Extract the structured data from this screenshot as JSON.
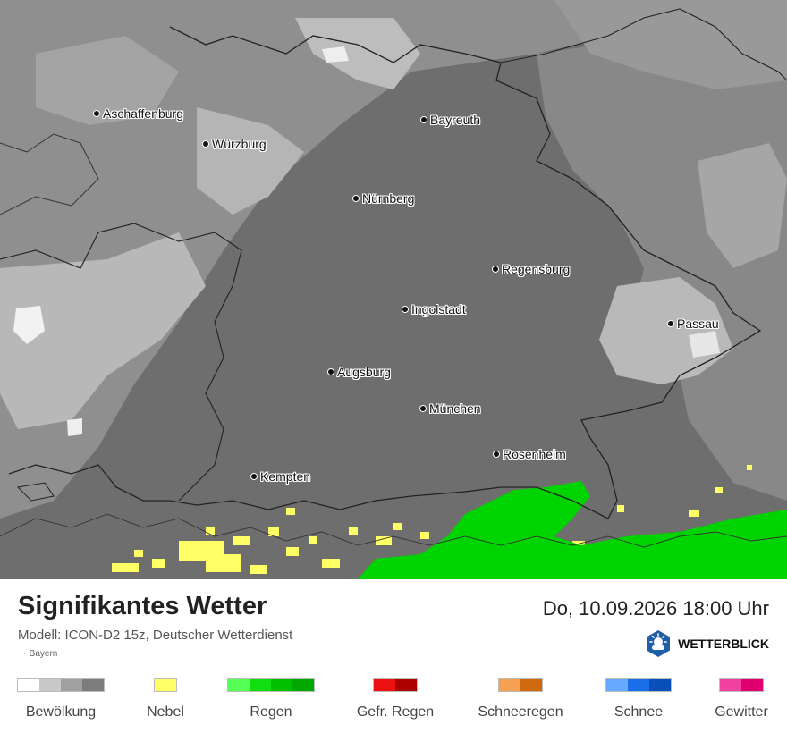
{
  "map": {
    "region": "Bayern",
    "cities": [
      {
        "name": "Aschaffenburg"
      },
      {
        "name": "Würzburg"
      },
      {
        "name": "Bayreuth"
      },
      {
        "name": "Nürnberg"
      },
      {
        "name": "Regensburg"
      },
      {
        "name": "Ingolstadt"
      },
      {
        "name": "Passau"
      },
      {
        "name": "Augsburg"
      },
      {
        "name": "München"
      },
      {
        "name": "Rosenheim"
      },
      {
        "name": "Kempten"
      }
    ]
  },
  "footer": {
    "title": "Signifikantes Wetter",
    "datetime": "Do, 10.09.2026 18:00 Uhr",
    "subtitle": "Modell: ICON-D2 15z, Deutscher Wetterdienst",
    "region_label": "Bayern",
    "brand": "WETTERBLICK",
    "brand_icon": "sun-cloud-icon"
  },
  "legend": [
    {
      "label": "Bewölkung",
      "colors": [
        "#ffffff",
        "#c8c8c8",
        "#a0a0a0",
        "#7c7c7c"
      ]
    },
    {
      "label": "Nebel",
      "colors": [
        "#ffff66"
      ]
    },
    {
      "label": "Regen",
      "colors": [
        "#55ff55",
        "#11dd11",
        "#00c000",
        "#00a800"
      ]
    },
    {
      "label": "Gefr. Regen",
      "colors": [
        "#ee1111",
        "#aa0000"
      ]
    },
    {
      "label": "Schneeregen",
      "colors": [
        "#f5a050",
        "#d06a10"
      ]
    },
    {
      "label": "Schnee",
      "colors": [
        "#66aaff",
        "#1a6ee8",
        "#0a4fb8"
      ]
    },
    {
      "label": "Gewitter",
      "colors": [
        "#f040a0",
        "#e00070"
      ]
    }
  ]
}
